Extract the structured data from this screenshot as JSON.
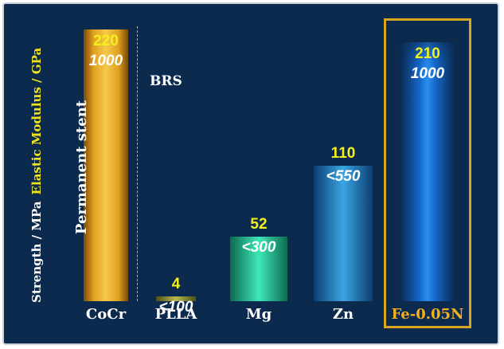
{
  "chart_data": {
    "type": "bar",
    "categories": [
      "CoCr",
      "PLLA",
      "Mg",
      "Zn",
      "Fe-0.05N"
    ],
    "series": [
      {
        "name": "Elastic Modulus / GPa",
        "values": [
          220,
          4,
          52,
          110,
          210
        ],
        "labels": [
          "220",
          "4",
          "52",
          "110",
          "210"
        ]
      },
      {
        "name": "Strength / MPa",
        "labels": [
          "1000",
          "<100",
          "<300",
          "<550",
          "1000"
        ]
      }
    ],
    "ylabel_strength": "Strength / MPa",
    "ylabel_modulus": "Elastic Modulus / GPa",
    "ylim": [
      0,
      220
    ],
    "annotations": {
      "brs": "BRS",
      "permanent": "Permanent stent"
    },
    "highlight": "Fe-0.05N"
  },
  "colors": {
    "background": "#0b2a4e",
    "modulus_text": "#f4f01a",
    "strength_text": "#ffffff",
    "highlight": "#d9a520"
  }
}
